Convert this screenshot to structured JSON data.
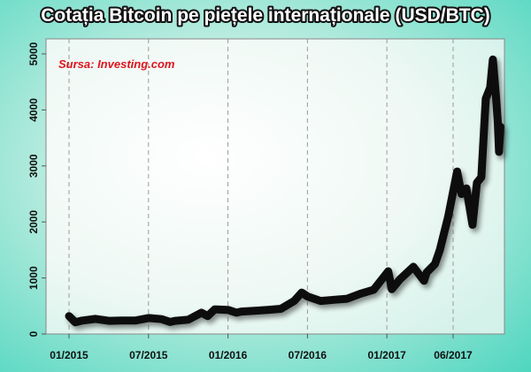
{
  "chart_data": {
    "type": "line",
    "title": "Cotația Bitcoin pe piețele internaționale (USD/BTC)",
    "source": "Sursa: Investing.com",
    "xlabel": "",
    "ylabel": "",
    "x_ticks": [
      "01/2015",
      "07/2015",
      "01/2016",
      "07/2016",
      "01/2017",
      "06/2017"
    ],
    "y_ticks": [
      0,
      1000,
      2000,
      3000,
      4000,
      5000
    ],
    "ylim": [
      0,
      5000
    ],
    "grid": "vertical-dashed",
    "series_color": "#111111",
    "series": [
      {
        "values": [
          {
            "x": "2015-01",
            "y": 320
          },
          {
            "x": "2015-01-15",
            "y": 210
          },
          {
            "x": "2015-02",
            "y": 240
          },
          {
            "x": "2015-03",
            "y": 270
          },
          {
            "x": "2015-04",
            "y": 235
          },
          {
            "x": "2015-05",
            "y": 240
          },
          {
            "x": "2015-06",
            "y": 240
          },
          {
            "x": "2015-07",
            "y": 285
          },
          {
            "x": "2015-08",
            "y": 265
          },
          {
            "x": "2015-08-20",
            "y": 215
          },
          {
            "x": "2015-09",
            "y": 235
          },
          {
            "x": "2015-10",
            "y": 255
          },
          {
            "x": "2015-11",
            "y": 380
          },
          {
            "x": "2015-11-15",
            "y": 320
          },
          {
            "x": "2015-12",
            "y": 440
          },
          {
            "x": "2016-01",
            "y": 430
          },
          {
            "x": "2016-01-20",
            "y": 380
          },
          {
            "x": "2016-02",
            "y": 400
          },
          {
            "x": "2016-03",
            "y": 415
          },
          {
            "x": "2016-04",
            "y": 430
          },
          {
            "x": "2016-05",
            "y": 450
          },
          {
            "x": "2016-06",
            "y": 590
          },
          {
            "x": "2016-06-18",
            "y": 740
          },
          {
            "x": "2016-07",
            "y": 670
          },
          {
            "x": "2016-08",
            "y": 590
          },
          {
            "x": "2016-09",
            "y": 610
          },
          {
            "x": "2016-10",
            "y": 630
          },
          {
            "x": "2016-11",
            "y": 720
          },
          {
            "x": "2016-12",
            "y": 790
          },
          {
            "x": "2017-01-04",
            "y": 1120
          },
          {
            "x": "2017-01-12",
            "y": 800
          },
          {
            "x": "2017-02",
            "y": 980
          },
          {
            "x": "2017-03",
            "y": 1200
          },
          {
            "x": "2017-03-25",
            "y": 950
          },
          {
            "x": "2017-04",
            "y": 1100
          },
          {
            "x": "2017-04-20",
            "y": 1250
          },
          {
            "x": "2017-05",
            "y": 1500
          },
          {
            "x": "2017-05-20",
            "y": 2100
          },
          {
            "x": "2017-06-10",
            "y": 2900
          },
          {
            "x": "2017-06-20",
            "y": 2500
          },
          {
            "x": "2017-07-01",
            "y": 2600
          },
          {
            "x": "2017-07-15",
            "y": 1950
          },
          {
            "x": "2017-07-25",
            "y": 2700
          },
          {
            "x": "2017-08-05",
            "y": 2800
          },
          {
            "x": "2017-08-15",
            "y": 4200
          },
          {
            "x": "2017-08-25",
            "y": 4400
          },
          {
            "x": "2017-09-01",
            "y": 4900
          },
          {
            "x": "2017-09-08",
            "y": 4250
          },
          {
            "x": "2017-09-12",
            "y": 3800
          },
          {
            "x": "2017-09-15",
            "y": 3250
          },
          {
            "x": "2017-09-18",
            "y": 3700
          }
        ]
      }
    ]
  }
}
